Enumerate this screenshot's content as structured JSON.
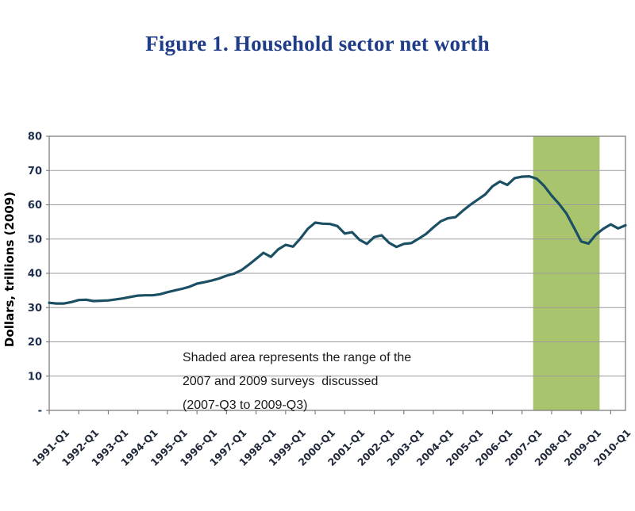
{
  "page": {
    "title": "Figure 1. Household sector net worth"
  },
  "colors": {
    "title_text": "#1e3c87",
    "line": "#1b4f63",
    "shaded_band": "#a8c46d",
    "gridline": "#9a9a9a",
    "axis": "#7f7f7f",
    "y_tick_text": "#1d2d4d",
    "x_tick_text": "#21293a",
    "annotation_text": "#1a1a1a",
    "background": "#ffffff"
  },
  "chart_data": {
    "type": "line",
    "title": "Figure 1. Household sector net worth",
    "ylabel": "Dollars, trillions (2009)",
    "xlabel": "",
    "ylim": [
      0,
      80
    ],
    "y_tick_interval": 10,
    "y_tick_labels": [
      "-",
      "10",
      "20",
      "30",
      "40",
      "50",
      "60",
      "70",
      "80"
    ],
    "x_tick_labels": [
      "1991-Q1",
      "1992-Q1",
      "1993-Q1",
      "1994-Q1",
      "1995-Q1",
      "1996-Q1",
      "1997-Q1",
      "1998-Q1",
      "1999-Q1",
      "2000-Q1",
      "2001-Q1",
      "2002-Q1",
      "2003-Q1",
      "2004-Q1",
      "2005-Q1",
      "2006-Q1",
      "2007-Q1",
      "2008-Q1",
      "2009-Q1",
      "2010-Q1"
    ],
    "x_start": "1991-Q1",
    "x_end": "2010-Q3",
    "frequency": "quarterly",
    "grid": "horizontal",
    "legend": "none",
    "shaded_region": {
      "from": "2007-Q3",
      "to": "2009-Q3",
      "meaning": "Range of the 2007 and 2009 surveys discussed"
    },
    "annotation_lines": [
      "Shaded area represents the range of the",
      "2007 and 2009 surveys  discussed",
      "(2007-Q3 to 2009-Q3)"
    ],
    "series": [
      {
        "name": "Household sector net worth (trillions of 2009 dollars)",
        "values": [
          31.4,
          31.2,
          31.2,
          31.6,
          32.2,
          32.3,
          31.9,
          32.0,
          32.1,
          32.4,
          32.7,
          33.1,
          33.5,
          33.6,
          33.6,
          33.9,
          34.5,
          35.0,
          35.5,
          36.1,
          37.0,
          37.4,
          37.9,
          38.5,
          39.3,
          39.9,
          40.9,
          42.5,
          44.2,
          46.0,
          44.8,
          47.0,
          48.3,
          47.8,
          50.2,
          53.0,
          54.8,
          54.5,
          54.4,
          53.8,
          51.6,
          52.0,
          49.8,
          48.6,
          50.6,
          51.1,
          48.9,
          47.7,
          48.6,
          48.8,
          50.1,
          51.5,
          53.4,
          55.2,
          56.1,
          56.4,
          58.3,
          60.0,
          61.5,
          63.0,
          65.4,
          66.8,
          65.8,
          67.8,
          68.2,
          68.3,
          67.6,
          65.5,
          62.7,
          60.3,
          57.5,
          53.5,
          49.3,
          48.7,
          51.3,
          53.0,
          54.3,
          53.1,
          54.0
        ]
      }
    ]
  }
}
